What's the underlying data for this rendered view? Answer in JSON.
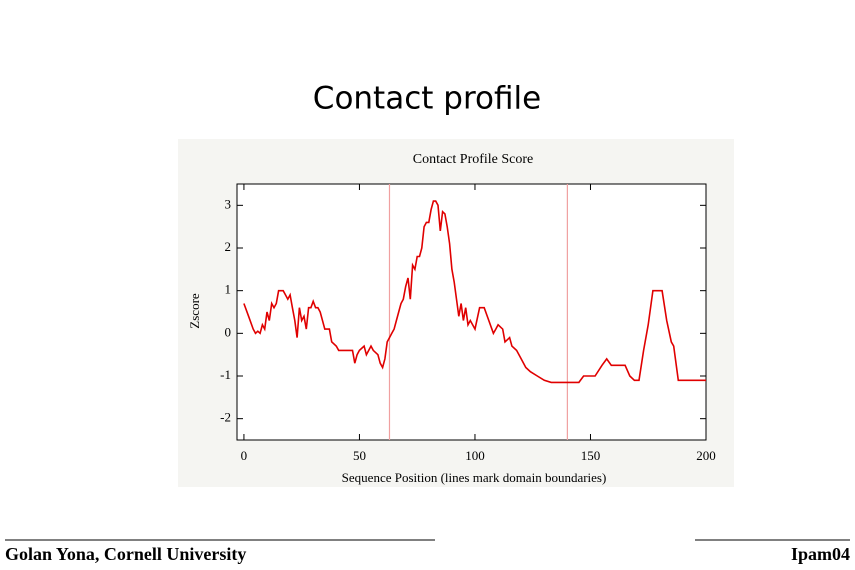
{
  "slide_title": "Contact profile",
  "footer_left": "Golan Yona, Cornell University",
  "footer_right": "Ipam04",
  "chart_data": {
    "type": "line",
    "title": "Contact Profile Score",
    "x_label": "Sequence Position (lines mark domain boundaries)",
    "y_label": "Zscore",
    "color": "#e00000",
    "boundary_color": "#f0a0a0",
    "boundaries": [
      63,
      140
    ],
    "xlim": [
      -3,
      200
    ],
    "ylim": [
      -2.5,
      3.5
    ],
    "xticks": [
      0,
      50,
      100,
      150,
      200
    ],
    "yticks": [
      -2,
      -1,
      0,
      1,
      2,
      3
    ],
    "x": [
      0,
      2,
      4,
      5,
      6,
      7,
      8,
      9,
      10,
      11,
      12,
      13,
      14,
      15,
      17,
      18,
      19,
      20,
      21,
      22,
      23,
      24,
      25,
      26,
      27,
      28,
      29,
      30,
      31,
      32,
      33,
      35,
      37,
      38,
      40,
      41,
      45,
      47,
      48,
      49,
      50,
      52,
      53,
      55,
      56,
      58,
      59,
      60,
      61,
      62,
      63,
      64,
      65,
      66,
      67,
      68,
      69,
      70,
      71,
      72,
      73,
      74,
      75,
      76,
      77,
      78,
      79,
      80,
      81,
      82,
      83,
      84,
      85,
      86,
      87,
      88,
      89,
      90,
      91,
      92,
      93,
      94,
      95,
      96,
      97,
      98,
      100,
      102,
      104,
      106,
      108,
      109,
      110,
      112,
      113,
      115,
      116,
      118,
      120,
      122,
      124,
      127,
      130,
      133,
      145,
      147,
      152,
      155,
      157,
      159,
      161,
      165,
      167,
      169,
      171,
      173,
      175,
      177,
      181,
      183,
      185,
      186,
      188,
      200
    ],
    "values": [
      0.7,
      0.4,
      0.1,
      0.0,
      0.05,
      0,
      0.2,
      0.1,
      0.5,
      0.3,
      0.7,
      0.6,
      0.7,
      1.0,
      1.0,
      0.9,
      0.8,
      0.9,
      0.6,
      0.3,
      -0.1,
      0.6,
      0.3,
      0.4,
      0.1,
      0.6,
      0.6,
      0.75,
      0.6,
      0.6,
      0.5,
      0.1,
      0.1,
      -0.2,
      -0.3,
      -0.4,
      -0.4,
      -0.4,
      -0.7,
      -0.5,
      -0.4,
      -0.3,
      -0.5,
      -0.3,
      -0.4,
      -0.5,
      -0.7,
      -0.8,
      -0.6,
      -0.2,
      -0.1,
      0.0,
      0.1,
      0.3,
      0.5,
      0.7,
      0.8,
      1.1,
      1.3,
      0.8,
      1.6,
      1.5,
      1.8,
      1.8,
      2.0,
      2.5,
      2.6,
      2.6,
      2.9,
      3.1,
      3.1,
      3.0,
      2.4,
      2.85,
      2.8,
      2.5,
      2.1,
      1.5,
      1.2,
      0.8,
      0.4,
      0.7,
      0.3,
      0.6,
      0.2,
      0.3,
      0.1,
      0.6,
      0.6,
      0.3,
      0.0,
      0.1,
      0.2,
      0.1,
      -0.2,
      -0.1,
      -0.3,
      -0.4,
      -0.6,
      -0.8,
      -0.9,
      -1.0,
      -1.1,
      -1.15,
      -1.15,
      -1.0,
      -1.0,
      -0.75,
      -0.6,
      -0.75,
      -0.75,
      -0.75,
      -1.0,
      -1.1,
      -1.1,
      -0.4,
      0.2,
      1.0,
      1.0,
      0.3,
      -0.2,
      -0.3,
      -1.1,
      -1.1
    ]
  }
}
